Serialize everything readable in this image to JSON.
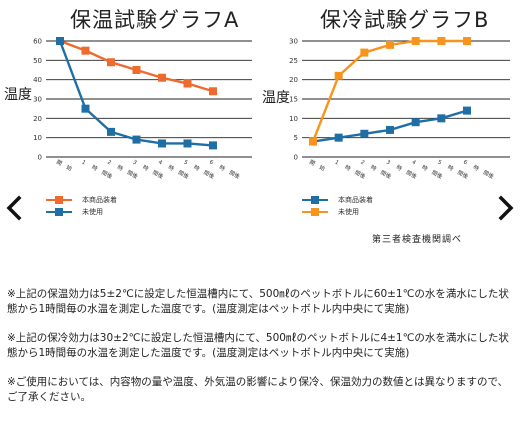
{
  "chart_data": [
    {
      "type": "line",
      "title": "保温試験グラフA",
      "ylabel": "温度",
      "ylim": [
        0,
        60
      ],
      "yticks": [
        0,
        10,
        20,
        30,
        40,
        50,
        60
      ],
      "x_labels": [
        [
          "開",
          "始"
        ],
        [
          "1",
          "時",
          "間後"
        ],
        [
          "2",
          "時",
          "間後"
        ],
        [
          "3",
          "時",
          "間後"
        ],
        [
          "4",
          "時",
          "間後"
        ],
        [
          "5",
          "時",
          "間後"
        ],
        [
          "6",
          "時",
          "間後"
        ]
      ],
      "series": [
        {
          "name": "本商品装着",
          "color": "#ef6a2f",
          "values": [
            60,
            55,
            49,
            45,
            41,
            38,
            34
          ]
        },
        {
          "name": "未使用",
          "color": "#1f6fa5",
          "values": [
            60,
            25,
            13,
            9,
            7,
            7,
            6
          ]
        }
      ]
    },
    {
      "type": "line",
      "title": "保冷試験グラフB",
      "ylabel": "温度",
      "ylim": [
        0,
        30
      ],
      "yticks": [
        0,
        5,
        10,
        15,
        20,
        25,
        30
      ],
      "x_labels": [
        [
          "開",
          "始"
        ],
        [
          "1",
          "時",
          "間後"
        ],
        [
          "2",
          "時",
          "間後"
        ],
        [
          "3",
          "時",
          "間後"
        ],
        [
          "4",
          "時",
          "間後"
        ],
        [
          "5",
          "時",
          "間後"
        ],
        [
          "6",
          "時",
          "間後"
        ]
      ],
      "series": [
        {
          "name": "本商品装着",
          "color": "#1f6fa5",
          "values": [
            4,
            5,
            6,
            7,
            9,
            10,
            12
          ]
        },
        {
          "name": "未使用",
          "color": "#f7941d",
          "values": [
            4,
            21,
            27,
            29,
            30,
            30,
            30
          ]
        }
      ]
    }
  ],
  "source": "第三者検査機関調べ",
  "notes": [
    "※上記の保温効力は5±2℃に設定した恒温槽内にて、500㎖のペットボトルに60±1℃の水を満水にした状態から1時間毎の水温を測定した温度です。(温度測定はペットボトル内中央にて実施)",
    "※上記の保冷効力は30±2℃に設定した恒温槽内にて、500㎖のペットボトルに4±1℃の水を満水にした状態から1時間毎の水温を測定した温度です。(温度測定はペットボトル内中央にて実施)",
    "※ご使用においては、内容物の量や温度、外気温の影響により保冷、保温効力の数値とは異なりますので、ご了承ください。"
  ],
  "nav": {
    "prev_icon": "chevron-left-icon",
    "next_icon": "chevron-right-icon"
  }
}
